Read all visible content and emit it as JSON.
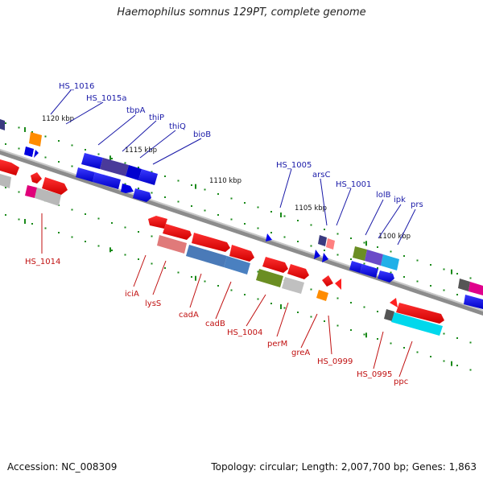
{
  "title": "Haemophilus somnus 129PT, complete genome",
  "accession": "Accession: NC_008309",
  "topology": "Topology: circular; Length: 2,007,700 bp; Genes: 1,863",
  "tick_labels": [
    "1120 kbp",
    "1115 kbp",
    "1110 kbp",
    "1105 kbp",
    "1100 kbp"
  ],
  "genes_top": [
    "HS_1016",
    "HS_1015a",
    "tbpA",
    "thiP",
    "thiQ",
    "bioB",
    "HS_1005",
    "arsC",
    "HS_1001",
    "lolB",
    "ipk",
    "prs"
  ],
  "genes_bottom": [
    "HS_1014",
    "iciA",
    "lysS",
    "cadA",
    "cadB",
    "HS_1004",
    "perM",
    "greA",
    "HS_0999",
    "HS_0995",
    "ppc"
  ],
  "colors": {
    "top_label": "#1a1aa8",
    "bottom_label": "#c01010",
    "backbone": "#8c8c8c"
  }
}
